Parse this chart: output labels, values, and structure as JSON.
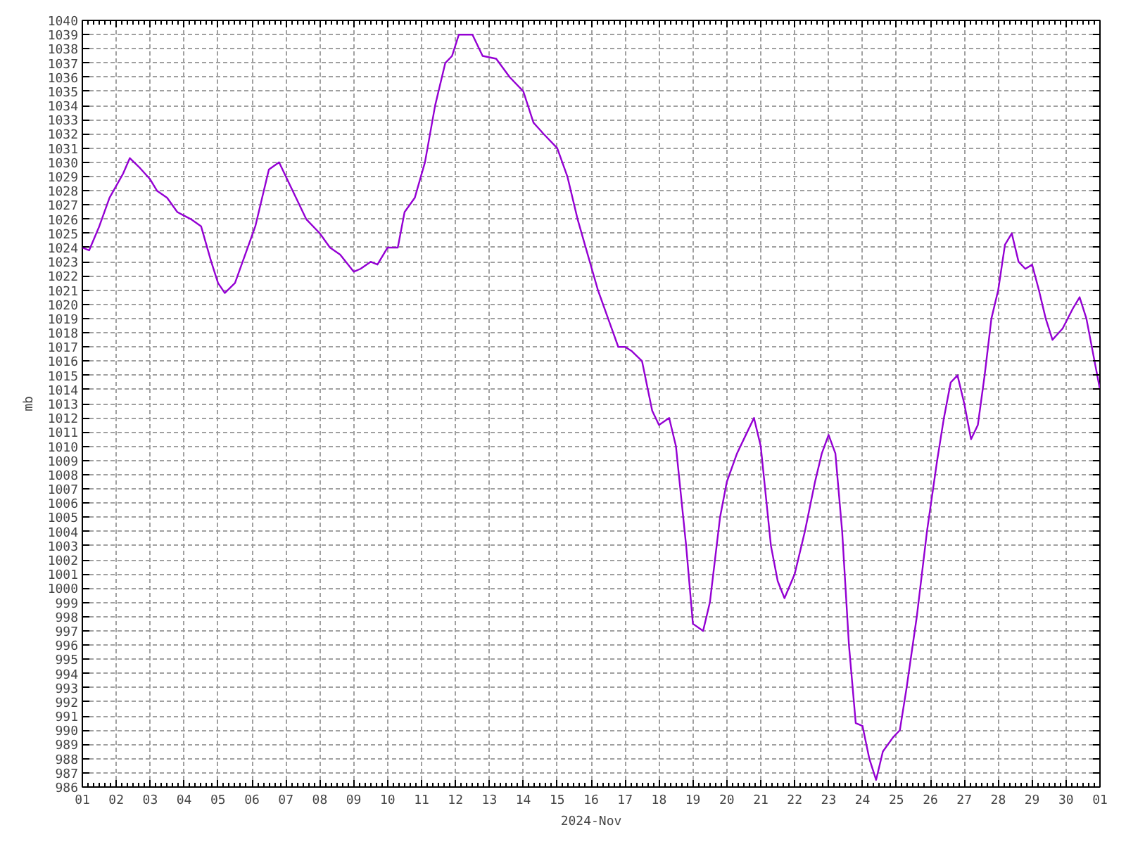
{
  "chart_data": {
    "type": "line",
    "xlabel": "2024-Nov",
    "ylabel": "mb",
    "grid": true,
    "marker": "none",
    "line_style": "solid",
    "xlim": [
      "2024-11-01",
      "2024-12-01"
    ],
    "ylim": [
      986,
      1040
    ],
    "xticks": [
      {
        "value": "2024-11-01",
        "label": "01"
      },
      {
        "value": "2024-11-02",
        "label": "02"
      },
      {
        "value": "2024-11-03",
        "label": "03"
      },
      {
        "value": "2024-11-04",
        "label": "04"
      },
      {
        "value": "2024-11-05",
        "label": "05"
      },
      {
        "value": "2024-11-06",
        "label": "06"
      },
      {
        "value": "2024-11-07",
        "label": "07"
      },
      {
        "value": "2024-11-08",
        "label": "08"
      },
      {
        "value": "2024-11-09",
        "label": "09"
      },
      {
        "value": "2024-11-10",
        "label": "10"
      },
      {
        "value": "2024-11-11",
        "label": "11"
      },
      {
        "value": "2024-11-12",
        "label": "12"
      },
      {
        "value": "2024-11-13",
        "label": "13"
      },
      {
        "value": "2024-11-14",
        "label": "14"
      },
      {
        "value": "2024-11-15",
        "label": "15"
      },
      {
        "value": "2024-11-16",
        "label": "16"
      },
      {
        "value": "2024-11-17",
        "label": "17"
      },
      {
        "value": "2024-11-18",
        "label": "18"
      },
      {
        "value": "2024-11-19",
        "label": "19"
      },
      {
        "value": "2024-11-20",
        "label": "20"
      },
      {
        "value": "2024-11-21",
        "label": "21"
      },
      {
        "value": "2024-11-22",
        "label": "22"
      },
      {
        "value": "2024-11-23",
        "label": "23"
      },
      {
        "value": "2024-11-24",
        "label": "24"
      },
      {
        "value": "2024-11-25",
        "label": "25"
      },
      {
        "value": "2024-11-26",
        "label": "26"
      },
      {
        "value": "2024-11-27",
        "label": "27"
      },
      {
        "value": "2024-11-28",
        "label": "28"
      },
      {
        "value": "2024-11-29",
        "label": "29"
      },
      {
        "value": "2024-11-30",
        "label": "30"
      },
      {
        "value": "2024-12-01",
        "label": "01"
      }
    ],
    "yticks": [
      986,
      987,
      988,
      989,
      990,
      991,
      992,
      993,
      994,
      995,
      996,
      997,
      998,
      999,
      1000,
      1001,
      1002,
      1003,
      1004,
      1005,
      1006,
      1007,
      1008,
      1009,
      1010,
      1011,
      1012,
      1013,
      1014,
      1015,
      1016,
      1017,
      1018,
      1019,
      1020,
      1021,
      1022,
      1023,
      1024,
      1025,
      1026,
      1027,
      1028,
      1029,
      1030,
      1031,
      1032,
      1033,
      1034,
      1035,
      1036,
      1037,
      1038,
      1039,
      1040
    ],
    "x": [
      "2024-11-01T00:00",
      "2024-11-01T04:48",
      "2024-11-01T12:00",
      "2024-11-01T19:12",
      "2024-11-02T04:48",
      "2024-11-02T09:36",
      "2024-11-02T16:48",
      "2024-11-03T00:00",
      "2024-11-03T04:48",
      "2024-11-03T12:00",
      "2024-11-03T19:12",
      "2024-11-04T04:48",
      "2024-11-04T12:00",
      "2024-11-04T19:12",
      "2024-11-05T00:00",
      "2024-11-05T04:48",
      "2024-11-05T12:00",
      "2024-11-05T19:12",
      "2024-11-06T02:24",
      "2024-11-06T07:12",
      "2024-11-06T12:00",
      "2024-11-06T19:12",
      "2024-11-07T00:00",
      "2024-11-07T07:12",
      "2024-11-07T14:24",
      "2024-11-08T00:00",
      "2024-11-08T07:12",
      "2024-11-08T14:24",
      "2024-11-09T00:00",
      "2024-11-09T04:48",
      "2024-11-09T12:00",
      "2024-11-09T16:48",
      "2024-11-10T00:00",
      "2024-11-10T07:12",
      "2024-11-10T12:00",
      "2024-11-10T19:12",
      "2024-11-11T02:24",
      "2024-11-11T09:36",
      "2024-11-11T16:48",
      "2024-11-11T21:36",
      "2024-11-12T02:24",
      "2024-11-12T12:00",
      "2024-11-12T19:12",
      "2024-11-13T04:48",
      "2024-11-13T14:24",
      "2024-11-14T00:00",
      "2024-11-14T07:12",
      "2024-11-14T14:24",
      "2024-11-15T00:00",
      "2024-11-15T07:12",
      "2024-11-15T14:24",
      "2024-11-15T21:36",
      "2024-11-16T04:48",
      "2024-11-16T12:00",
      "2024-11-16T19:12",
      "2024-11-17T00:00",
      "2024-11-17T04:48",
      "2024-11-17T12:00",
      "2024-11-17T19:12",
      "2024-11-18T00:00",
      "2024-11-18T07:12",
      "2024-11-18T12:00",
      "2024-11-18T19:12",
      "2024-11-19T00:00",
      "2024-11-19T07:12",
      "2024-11-19T12:00",
      "2024-11-19T19:12",
      "2024-11-20T00:00",
      "2024-11-20T07:12",
      "2024-11-20T14:24",
      "2024-11-20T19:12",
      "2024-11-21T00:00",
      "2024-11-21T07:12",
      "2024-11-21T12:00",
      "2024-11-21T16:48",
      "2024-11-22T00:00",
      "2024-11-22T07:12",
      "2024-11-22T14:24",
      "2024-11-22T19:12",
      "2024-11-23T00:00",
      "2024-11-23T04:48",
      "2024-11-23T09:36",
      "2024-11-23T14:24",
      "2024-11-23T19:12",
      "2024-11-24T00:00",
      "2024-11-24T04:48",
      "2024-11-24T09:36",
      "2024-11-24T14:24",
      "2024-11-24T21:36",
      "2024-11-25T02:24",
      "2024-11-25T07:12",
      "2024-11-25T14:24",
      "2024-11-25T21:36",
      "2024-11-26T04:48",
      "2024-11-26T09:36",
      "2024-11-26T14:24",
      "2024-11-26T19:12",
      "2024-11-27T00:00",
      "2024-11-27T04:48",
      "2024-11-27T09:36",
      "2024-11-27T14:24",
      "2024-11-27T19:12",
      "2024-11-28T00:00",
      "2024-11-28T04:48",
      "2024-11-28T09:36",
      "2024-11-28T14:24",
      "2024-11-28T19:12",
      "2024-11-29T00:00",
      "2024-11-29T04:48",
      "2024-11-29T09:36",
      "2024-11-29T14:24",
      "2024-11-29T21:36",
      "2024-11-30T04:48",
      "2024-11-30T09:36",
      "2024-11-30T14:24",
      "2024-11-30T19:12",
      "2024-12-01T00:00"
    ],
    "series": [
      {
        "color": "#9400d3",
        "values": [
          1024,
          1023.8,
          1025.5,
          1027.5,
          1029.2,
          1030.3,
          1029.6,
          1028.8,
          1028,
          1027.5,
          1026.5,
          1026,
          1025.5,
          1023,
          1021.5,
          1020.8,
          1021.5,
          1023.5,
          1025.5,
          1027.5,
          1029.5,
          1030,
          1029,
          1027.5,
          1026,
          1025,
          1024,
          1023.5,
          1022.3,
          1022.5,
          1023,
          1022.8,
          1024,
          1024,
          1026.5,
          1027.5,
          1030,
          1034,
          1037,
          1037.5,
          1039,
          1039,
          1037.5,
          1037.3,
          1036,
          1035,
          1032.8,
          1032,
          1031,
          1029,
          1026,
          1023.5,
          1021,
          1019,
          1017,
          1017,
          1016.7,
          1016,
          1012.5,
          1011.5,
          1012,
          1010,
          1003,
          997.5,
          997,
          999,
          1005,
          1007.5,
          1009.5,
          1011,
          1012,
          1010,
          1003,
          1000.5,
          999.3,
          1001,
          1004,
          1007.5,
          1009.5,
          1010.8,
          1009.5,
          1004,
          996,
          990.5,
          990.3,
          988,
          986.5,
          988.5,
          989.5,
          990,
          993,
          998,
          1004,
          1009,
          1012,
          1014.5,
          1015,
          1013,
          1010.5,
          1011.5,
          1015,
          1019,
          1021,
          1024.2,
          1025,
          1023,
          1022.5,
          1022.8,
          1021,
          1019,
          1017.5,
          1018.3,
          1019.7,
          1020.5,
          1019,
          1016.5,
          1014
        ]
      }
    ]
  }
}
